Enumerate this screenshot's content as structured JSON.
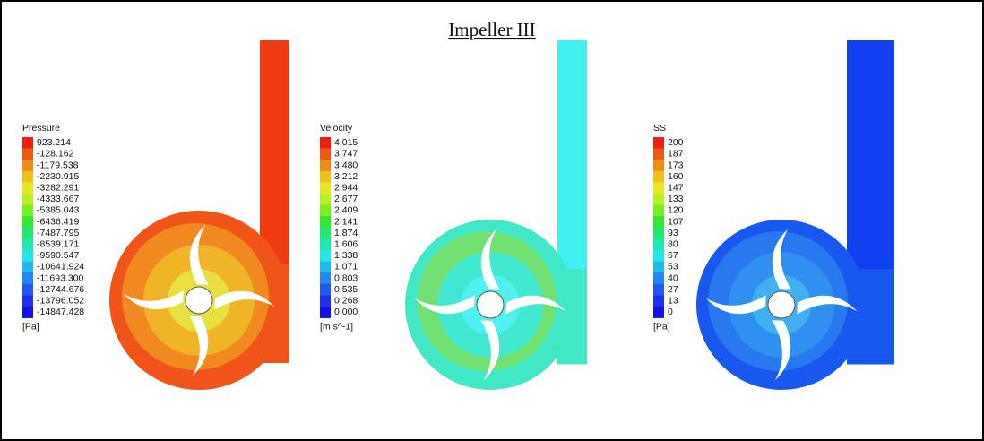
{
  "title": "Impeller III",
  "legends": [
    {
      "title": "Pressure",
      "labels": [
        "923.214",
        "-128.162",
        "-1179.538",
        "-2230.915",
        "-3282.291",
        "-4333.667",
        "-5385.043",
        "-6436.419",
        "-7487.795",
        "-8539.171",
        "-9590.547",
        "-10641.924",
        "-11693.300",
        "-12744.676",
        "-13796.052",
        "-14847.428"
      ],
      "unit": "[Pa]"
    },
    {
      "title": "Velocity",
      "labels": [
        "4.015",
        "3.747",
        "3.480",
        "3.212",
        "2.944",
        "2.677",
        "2.409",
        "2.141",
        "1.874",
        "1.606",
        "1.338",
        "1.071",
        "0.803",
        "0.535",
        "0.268",
        "0.000"
      ],
      "unit": "[m s^-1]"
    },
    {
      "title": "SS",
      "labels": [
        "200",
        "187",
        "173",
        "160",
        "147",
        "133",
        "120",
        "107",
        "93",
        "80",
        "67",
        "53",
        "40",
        "27",
        "13",
        "0"
      ],
      "unit": "[Pa]"
    }
  ]
}
